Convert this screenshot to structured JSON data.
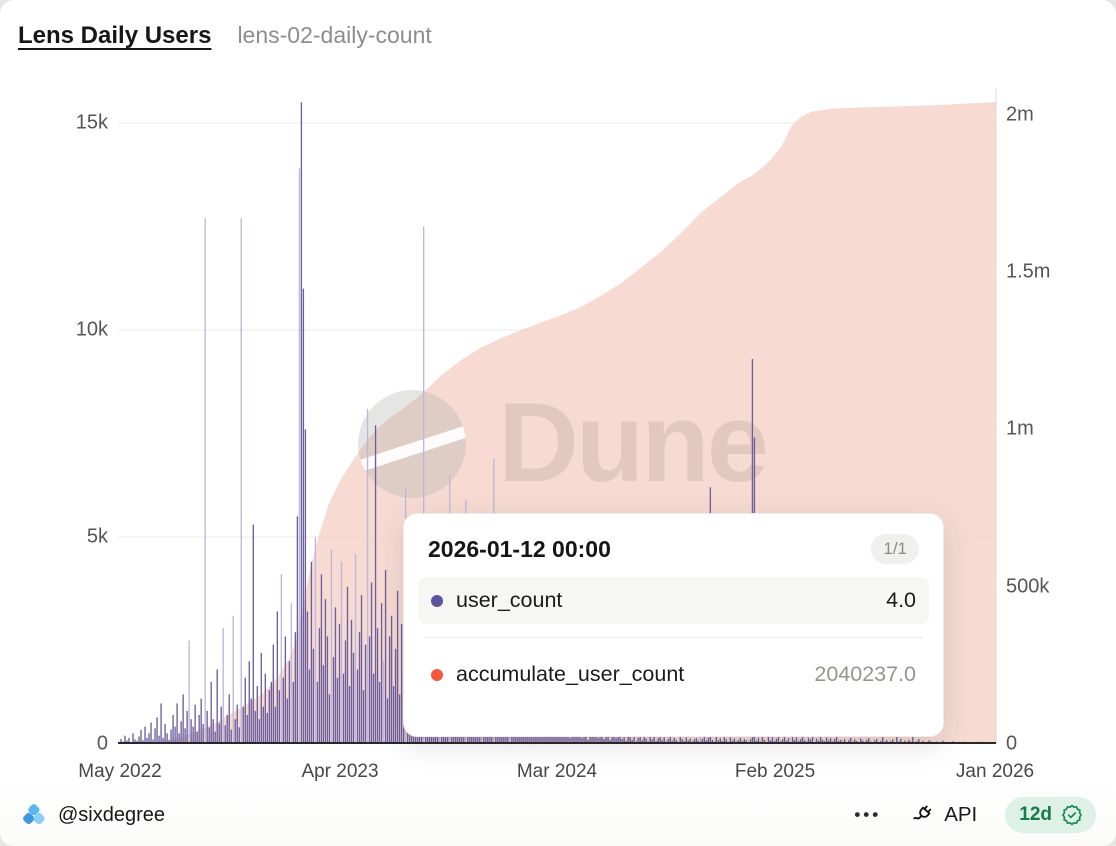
{
  "header": {
    "title": "Lens Daily Users",
    "subtitle": "lens-02-daily-count"
  },
  "chart_data": {
    "type": "bar",
    "note": "daily bar series (left axis) + cumulative area series (right axis)",
    "x_ticks": [
      "May 2022",
      "Apr 2023",
      "Mar 2024",
      "Feb 2025",
      "Jan 2026"
    ],
    "left_axis": {
      "ticks": [
        {
          "label": "0",
          "value": 0
        },
        {
          "label": "5k",
          "value": 5000
        },
        {
          "label": "10k",
          "value": 10000
        },
        {
          "label": "15k",
          "value": 15000
        }
      ],
      "max": 15800
    },
    "right_axis": {
      "ticks": [
        {
          "label": "0",
          "value": 0
        },
        {
          "label": "500k",
          "value": 500000
        },
        {
          "label": "1m",
          "value": 1000000
        },
        {
          "label": "1.5m",
          "value": 1500000
        },
        {
          "label": "2m",
          "value": 2000000
        }
      ],
      "max": 2080000
    },
    "watermark": "Dune",
    "series": [
      {
        "name": "user_count",
        "type": "bar",
        "axis": "left",
        "color": "#6b5fa0",
        "light_color": "#bdb7db",
        "light_indices": [
          35,
          43,
          52,
          57,
          61,
          81,
          86,
          90,
          98,
          106,
          111,
          118,
          124,
          132,
          143,
          152,
          160,
          165,
          173,
          181,
          187,
          195,
          290
        ],
        "values": [
          30,
          120,
          60,
          200,
          90,
          150,
          45,
          260,
          110,
          80,
          180,
          340,
          90,
          420,
          150,
          260,
          520,
          110,
          380,
          640,
          200,
          980,
          150,
          480,
          260,
          90,
          350,
          700,
          420,
          980,
          260,
          550,
          1200,
          380,
          800,
          2500,
          600,
          420,
          950,
          300,
          700,
          1100,
          480,
          12700,
          800,
          400,
          1500,
          600,
          300,
          1800,
          500,
          900,
          2800,
          450,
          700,
          1200,
          350,
          3100,
          600,
          950,
          400,
          12700,
          900,
          1600,
          700,
          2000,
          1100,
          5300,
          800,
          1400,
          600,
          2200,
          900,
          1700,
          750,
          1300,
          1500,
          2400,
          900,
          3200,
          1300,
          4100,
          1600,
          2600,
          1100,
          2000,
          3400,
          1500,
          2700,
          5500,
          13900,
          15500,
          11000,
          7600,
          3200,
          1800,
          4400,
          2300,
          5000,
          1500,
          2800,
          4100,
          1900,
          3500,
          2600,
          1200,
          4700,
          2100,
          3300,
          1600,
          2900,
          4400,
          1700,
          2500,
          3800,
          1400,
          3000,
          2200,
          4600,
          1800,
          2700,
          3600,
          1300,
          2400,
          8100,
          2600,
          3900,
          1700,
          7700,
          2800,
          1500,
          3400,
          2000,
          4200,
          1100,
          2600,
          3100,
          1400,
          2300,
          3700,
          1200,
          2900,
          1800,
          6200,
          2100,
          1300,
          2800,
          1000,
          1900,
          2500,
          900,
          1600,
          12500,
          1800,
          900,
          2400,
          1200,
          700,
          2000,
          1500,
          800,
          1100,
          1900,
          600,
          1400,
          6500,
          1000,
          1700,
          800,
          1300,
          600,
          1100,
          900,
          5900,
          700,
          1200,
          500,
          1000,
          1500,
          650,
          900,
          1200,
          450,
          800,
          1100,
          600,
          950,
          6900,
          800,
          500,
          1100,
          700,
          400,
          900,
          1300,
          550,
          750,
          1000,
          450,
          850,
          600,
          5000,
          700,
          400,
          900,
          550,
          300,
          750,
          500,
          1000,
          350,
          650,
          800,
          300,
          550,
          700,
          250,
          450,
          600,
          350,
          500,
          400,
          250,
          550,
          300,
          150,
          450,
          600,
          200,
          350,
          500,
          150,
          300,
          400,
          100,
          250,
          450,
          200,
          350,
          150,
          300,
          400,
          120,
          250,
          350,
          100,
          200,
          300,
          150,
          250,
          180,
          120,
          260,
          80,
          180,
          320,
          100,
          220,
          60,
          150,
          280,
          90,
          200,
          130,
          60,
          240,
          110,
          170,
          70,
          140,
          250,
          90,
          160,
          60,
          120,
          200,
          80,
          150,
          100,
          50,
          180,
          120,
          70,
          160,
          90,
          130,
          60,
          110,
          140,
          80,
          4600,
          120,
          200,
          90,
          150,
          6200,
          100,
          60,
          180,
          90,
          140,
          70,
          200,
          110,
          50,
          160,
          80,
          130,
          60,
          100,
          150,
          70,
          120,
          90,
          40,
          110,
          9300,
          7400,
          80,
          150,
          60,
          200,
          100,
          50,
          170,
          90,
          250,
          70,
          130,
          180,
          60,
          110,
          220,
          80,
          140,
          50,
          190,
          100,
          160,
          70,
          120,
          200,
          90,
          60,
          150,
          110,
          180,
          50,
          130,
          80,
          210,
          100,
          70,
          160,
          90,
          140,
          60,
          120,
          180,
          75,
          100,
          60,
          120,
          40,
          90,
          150,
          55,
          110,
          70,
          30,
          130,
          85,
          50,
          100,
          140,
          60,
          35,
          90,
          120,
          45,
          75,
          420,
          55,
          95,
          40,
          70,
          110,
          30,
          380,
          60,
          125,
          45,
          80,
          35,
          100,
          55,
          350,
          25,
          65,
          115,
          40,
          75,
          50,
          30,
          85,
          60,
          45,
          30,
          60,
          20,
          45,
          80,
          25,
          55,
          15,
          40,
          65,
          20,
          35,
          50,
          15,
          30,
          55,
          20,
          40,
          10,
          25,
          45,
          15,
          35,
          20,
          50,
          10,
          30,
          18,
          25,
          12,
          4
        ]
      },
      {
        "name": "accumulate_user_count",
        "type": "area",
        "axis": "right",
        "color": "rgba(244,205,194,0.72)",
        "anchor_points": [
          [
            0,
            0
          ],
          [
            10,
            2000
          ],
          [
            20,
            8000
          ],
          [
            30,
            20000
          ],
          [
            40,
            42000
          ],
          [
            48,
            65000
          ],
          [
            56,
            95000
          ],
          [
            64,
            125000
          ],
          [
            72,
            160000
          ],
          [
            80,
            215000
          ],
          [
            86,
            280000
          ],
          [
            89,
            330000
          ],
          [
            92,
            430000
          ],
          [
            96,
            560000
          ],
          [
            100,
            660000
          ],
          [
            105,
            760000
          ],
          [
            111,
            840000
          ],
          [
            118,
            910000
          ],
          [
            126,
            980000
          ],
          [
            134,
            1030000
          ],
          [
            141,
            1060000
          ],
          [
            151,
            1110000
          ],
          [
            161,
            1170000
          ],
          [
            171,
            1220000
          ],
          [
            181,
            1260000
          ],
          [
            191,
            1290000
          ],
          [
            201,
            1315000
          ],
          [
            211,
            1340000
          ],
          [
            220,
            1360000
          ],
          [
            231,
            1390000
          ],
          [
            241,
            1425000
          ],
          [
            251,
            1465000
          ],
          [
            261,
            1515000
          ],
          [
            271,
            1565000
          ],
          [
            281,
            1625000
          ],
          [
            291,
            1690000
          ],
          [
            301,
            1740000
          ],
          [
            311,
            1790000
          ],
          [
            316,
            1805000
          ],
          [
            321,
            1830000
          ],
          [
            326,
            1860000
          ],
          [
            331,
            1900000
          ],
          [
            336,
            1965000
          ],
          [
            341,
            1995000
          ],
          [
            346,
            2010000
          ],
          [
            356,
            2020000
          ],
          [
            381,
            2025000
          ],
          [
            406,
            2030000
          ],
          [
            437,
            2040237
          ]
        ]
      }
    ]
  },
  "tooltip": {
    "date": "2026-01-12 00:00",
    "page": "1/1",
    "rows": [
      {
        "name": "user_count",
        "value": "4.0",
        "color": "#5a53a0"
      },
      {
        "name": "accumulate_user_count",
        "value": "2040237.0",
        "color": "#f4583f"
      }
    ]
  },
  "footer": {
    "author": "@sixdegree",
    "menu": "•••",
    "api_label": "API",
    "badge": "12d"
  }
}
